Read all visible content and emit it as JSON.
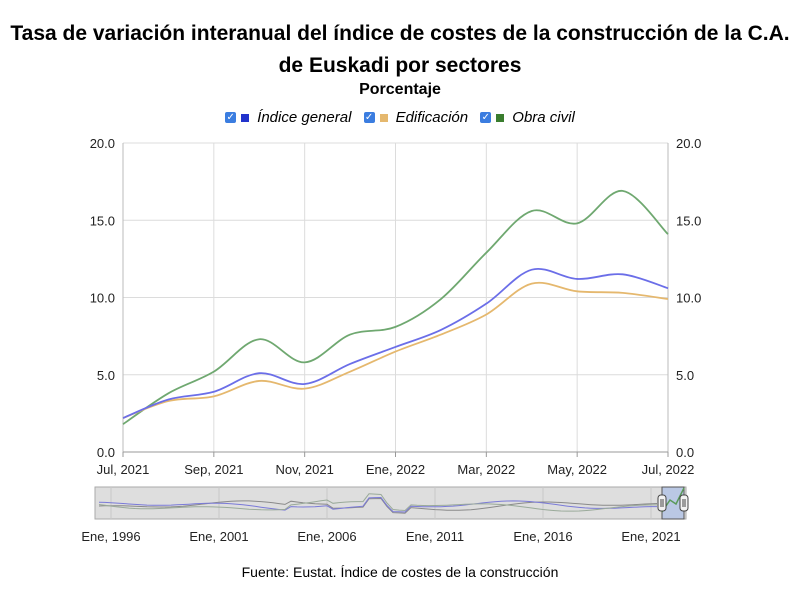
{
  "chart_data": {
    "type": "line",
    "title": "Tasa de variación interanual del índice de costes de la construcción de la C.A. de Euskadi por sectores",
    "subtitle": "Porcentaje",
    "source": "Fuente: Eustat. Índice de costes de la construcción",
    "x_tick_labels": [
      "Jul, 2021",
      "Sep, 2021",
      "Nov, 2021",
      "Ene, 2022",
      "Mar, 2022",
      "May, 2022",
      "Jul, 2022"
    ],
    "y_tick_labels": [
      "0.0",
      "5.0",
      "10.0",
      "15.0",
      "20.0"
    ],
    "ylim": [
      0,
      20
    ],
    "grid": true,
    "legend_position": "top",
    "x": [
      "2021-07",
      "2021-08",
      "2021-09",
      "2021-10",
      "2021-11",
      "2021-12",
      "2022-01",
      "2022-02",
      "2022-03",
      "2022-04",
      "2022-05",
      "2022-06",
      "2022-07"
    ],
    "series": [
      {
        "name": "Índice general",
        "color": "#6b6ee8",
        "values": [
          2.2,
          3.4,
          3.9,
          5.1,
          4.4,
          5.7,
          6.8,
          7.9,
          9.6,
          11.8,
          11.2,
          11.5,
          10.6
        ]
      },
      {
        "name": "Edificación",
        "color": "#e5b86e",
        "values": [
          2.2,
          3.3,
          3.6,
          4.6,
          4.1,
          5.2,
          6.5,
          7.6,
          8.9,
          10.9,
          10.4,
          10.3,
          9.9
        ]
      },
      {
        "name": "Obra civil",
        "color": "#6fa870",
        "values": [
          1.8,
          3.8,
          5.2,
          7.3,
          5.8,
          7.6,
          8.1,
          9.9,
          12.9,
          15.6,
          14.8,
          16.9,
          14.1
        ]
      }
    ],
    "navigator": {
      "tick_labels": [
        "Ene, 1996",
        "Ene, 2001",
        "Ene, 2006",
        "Ene, 2011",
        "Ene, 2016",
        "Ene, 2021"
      ]
    }
  }
}
